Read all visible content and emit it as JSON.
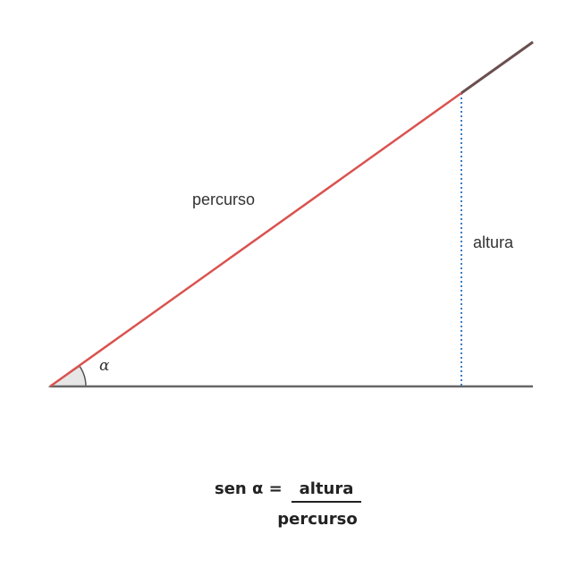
{
  "labels": {
    "hypotenuse": "percurso",
    "height": "altura",
    "angle": "α"
  },
  "formula": {
    "lhs": "sen α =",
    "numerator": "altura",
    "denominator": "percurso"
  },
  "colors": {
    "ramp_line": "#d9534f",
    "ramp_extension": "#6b4f4f",
    "base_line": "#666666",
    "height_line": "#3a7dc4",
    "angle_fill": "#e6e6e6"
  }
}
